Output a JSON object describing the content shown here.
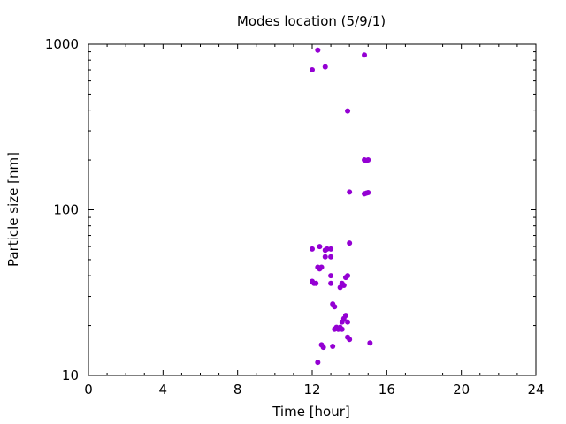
{
  "chart_data": {
    "type": "scatter",
    "title": "Modes location (5/9/1)",
    "xlabel": "Time [hour]",
    "ylabel": "Particle size [nm]",
    "xlim": [
      0,
      24
    ],
    "ylim": [
      10,
      1000
    ],
    "yscale": "log",
    "xticks": [
      "0",
      "4",
      "8",
      "12",
      "16",
      "20",
      "24"
    ],
    "yticks": [
      "10",
      "100",
      "1000"
    ],
    "grid": false,
    "legend": "none",
    "marker_color": "#9400d3",
    "series": [
      {
        "points": [
          [
            12.3,
            920
          ],
          [
            12.0,
            700
          ],
          [
            12.7,
            730
          ],
          [
            14.8,
            860
          ],
          [
            13.9,
            395
          ],
          [
            14.8,
            200
          ],
          [
            14.9,
            198
          ],
          [
            15.0,
            200
          ],
          [
            14.0,
            128
          ],
          [
            14.8,
            125
          ],
          [
            14.9,
            126
          ],
          [
            15.0,
            127
          ],
          [
            14.0,
            63
          ],
          [
            12.0,
            58
          ],
          [
            12.4,
            60
          ],
          [
            12.7,
            57
          ],
          [
            12.8,
            58
          ],
          [
            13.0,
            58
          ],
          [
            12.7,
            52
          ],
          [
            13.0,
            52
          ],
          [
            12.3,
            45
          ],
          [
            12.4,
            44
          ],
          [
            12.5,
            45
          ],
          [
            13.0,
            40
          ],
          [
            13.8,
            39
          ],
          [
            13.9,
            40
          ],
          [
            12.0,
            37
          ],
          [
            12.1,
            36
          ],
          [
            12.2,
            36
          ],
          [
            13.0,
            36
          ],
          [
            13.6,
            36
          ],
          [
            13.7,
            35
          ],
          [
            13.5,
            34
          ],
          [
            13.1,
            27
          ],
          [
            13.2,
            26
          ],
          [
            13.8,
            23
          ],
          [
            13.7,
            22
          ],
          [
            13.9,
            21
          ],
          [
            13.6,
            21
          ],
          [
            13.3,
            19.5
          ],
          [
            13.4,
            19
          ],
          [
            13.5,
            19.5
          ],
          [
            13.2,
            19
          ],
          [
            13.6,
            19
          ],
          [
            13.9,
            17
          ],
          [
            14.0,
            16.5
          ],
          [
            12.5,
            15.3
          ],
          [
            12.6,
            14.8
          ],
          [
            13.1,
            15.0
          ],
          [
            15.1,
            15.7
          ],
          [
            12.3,
            12.0
          ]
        ]
      }
    ]
  }
}
